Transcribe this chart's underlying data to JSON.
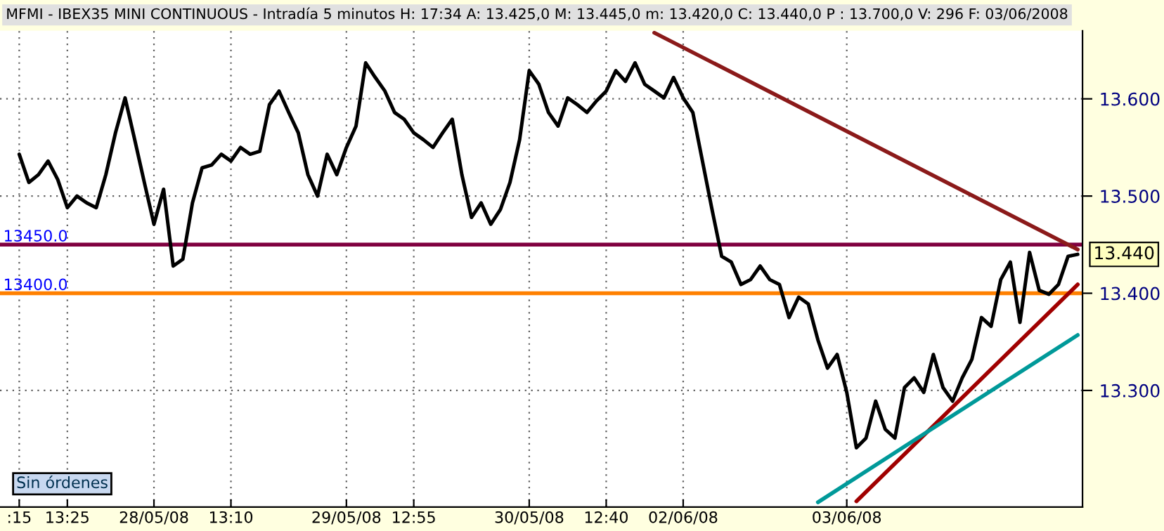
{
  "chart_data": {
    "type": "line",
    "title": "MFMI - IBEX35 MINI CONTINUOUS - Intradía 5 minutos H: 17:34 A: 13.425,0 M: 13.445,0 m: 13.420,0 C: 13.440,0 P : 13.700,0 V: 296 F: 03/06/2008",
    "categories": [
      ":15",
      null,
      null,
      null,
      null,
      "13:25",
      null,
      null,
      null,
      null,
      null,
      null,
      null,
      null,
      "28/05/08",
      null,
      null,
      null,
      null,
      null,
      null,
      null,
      "13:10",
      null,
      null,
      null,
      null,
      null,
      null,
      null,
      null,
      null,
      null,
      null,
      "29/05/08",
      null,
      null,
      null,
      null,
      null,
      null,
      "12:55",
      null,
      null,
      null,
      null,
      null,
      null,
      null,
      null,
      null,
      null,
      null,
      "30/05/08",
      null,
      null,
      null,
      null,
      null,
      null,
      null,
      "12:40",
      null,
      null,
      null,
      null,
      null,
      null,
      null,
      "02/06/08",
      null,
      null,
      null,
      null,
      null,
      null,
      null,
      null,
      null,
      null,
      null,
      null,
      null,
      null,
      null,
      null,
      "03/06/08",
      null,
      null,
      null,
      null,
      null,
      null,
      null,
      null,
      null,
      null,
      null,
      null,
      null,
      null,
      null,
      null,
      null,
      null,
      null,
      null,
      null,
      null,
      null,
      null
    ],
    "series": [
      {
        "color": "#000000",
        "values": [
          13.543,
          13.514,
          13.522,
          13.536,
          13.517,
          13.488,
          13.5,
          13.493,
          13.488,
          13.522,
          13.565,
          13.601,
          13.558,
          13.514,
          13.471,
          13.507,
          13.428,
          13.435,
          13.493,
          13.529,
          13.532,
          13.543,
          13.536,
          13.55,
          13.543,
          13.546,
          13.594,
          13.608,
          13.586,
          13.565,
          13.522,
          13.5,
          13.543,
          13.522,
          13.55,
          13.572,
          13.637,
          13.622,
          13.608,
          13.586,
          13.579,
          13.565,
          13.558,
          13.55,
          13.565,
          13.579,
          13.522,
          13.478,
          13.493,
          13.471,
          13.486,
          13.514,
          13.558,
          13.629,
          13.615,
          13.586,
          13.572,
          13.601,
          13.594,
          13.586,
          13.598,
          13.608,
          13.629,
          13.618,
          13.637,
          13.615,
          13.608,
          13.601,
          13.622,
          13.601,
          13.586,
          13.536,
          13.486,
          13.438,
          13.432,
          13.409,
          13.414,
          13.428,
          13.414,
          13.409,
          13.375,
          13.396,
          13.389,
          13.352,
          13.323,
          13.337,
          13.298,
          13.241,
          13.251,
          13.289,
          13.26,
          13.251,
          13.303,
          13.313,
          13.298,
          13.337,
          13.303,
          13.289,
          13.313,
          13.332,
          13.375,
          13.366,
          13.414,
          13.432,
          13.37,
          13.442,
          13.403,
          13.399,
          13.409,
          13.438,
          13.44
        ]
      },
      {
        "color": "#8b1a1a",
        "values": [
          null,
          null,
          null,
          null,
          null,
          null,
          null,
          null,
          null,
          null,
          null,
          null,
          null,
          null,
          null,
          null,
          null,
          null,
          null,
          null,
          null,
          null,
          null,
          null,
          null,
          null,
          null,
          null,
          null,
          null,
          null,
          null,
          null,
          null,
          null,
          null,
          null,
          null,
          null,
          null,
          null,
          null,
          null,
          null,
          null,
          null,
          null,
          null,
          null,
          null,
          null,
          null,
          null,
          null,
          null,
          null,
          null,
          null,
          null,
          null,
          null,
          null,
          null,
          null,
          null,
          null,
          13.668,
          null,
          null,
          null,
          null,
          null,
          null,
          null,
          null,
          null,
          null,
          null,
          null,
          null,
          null,
          null,
          null,
          null,
          null,
          null,
          null,
          null,
          null,
          null,
          null,
          null,
          null,
          null,
          null,
          null,
          null,
          null,
          null,
          null,
          null,
          null,
          null,
          null,
          null,
          null,
          null,
          null,
          null,
          null,
          13.445
        ]
      },
      {
        "color": "#a00000",
        "values": [
          null,
          null,
          null,
          null,
          null,
          null,
          null,
          null,
          null,
          null,
          null,
          null,
          null,
          null,
          null,
          null,
          null,
          null,
          null,
          null,
          null,
          null,
          null,
          null,
          null,
          null,
          null,
          null,
          null,
          null,
          null,
          null,
          null,
          null,
          null,
          null,
          null,
          null,
          null,
          null,
          null,
          null,
          null,
          null,
          null,
          null,
          null,
          null,
          null,
          null,
          null,
          null,
          null,
          null,
          null,
          null,
          null,
          null,
          null,
          null,
          null,
          null,
          null,
          null,
          null,
          null,
          null,
          null,
          null,
          null,
          null,
          null,
          null,
          null,
          null,
          null,
          null,
          null,
          null,
          null,
          null,
          null,
          null,
          null,
          null,
          null,
          null,
          13.186,
          null,
          null,
          null,
          null,
          null,
          null,
          null,
          null,
          null,
          null,
          null,
          null,
          null,
          null,
          null,
          null,
          null,
          null,
          null,
          null,
          null,
          null,
          13.409
        ]
      },
      {
        "color": "#009999",
        "values": [
          null,
          null,
          null,
          null,
          null,
          null,
          null,
          null,
          null,
          null,
          null,
          null,
          null,
          null,
          null,
          null,
          null,
          null,
          null,
          null,
          null,
          null,
          null,
          null,
          null,
          null,
          null,
          null,
          null,
          null,
          null,
          null,
          null,
          null,
          null,
          null,
          null,
          null,
          null,
          null,
          null,
          null,
          null,
          null,
          null,
          null,
          null,
          null,
          null,
          null,
          null,
          null,
          null,
          null,
          null,
          null,
          null,
          null,
          null,
          null,
          null,
          null,
          null,
          null,
          null,
          null,
          null,
          null,
          null,
          null,
          null,
          null,
          null,
          null,
          null,
          null,
          null,
          null,
          null,
          null,
          null,
          null,
          null,
          13.185,
          null,
          null,
          null,
          null,
          null,
          null,
          null,
          null,
          null,
          null,
          null,
          null,
          null,
          null,
          null,
          null,
          null,
          null,
          null,
          null,
          null,
          null,
          null,
          null,
          null,
          null,
          13.357
        ]
      }
    ],
    "ylim": [
      13.18,
      13.67
    ],
    "yticks": [
      {
        "value": 13.3,
        "label": "13.300"
      },
      {
        "value": 13.4,
        "label": "13.400"
      },
      {
        "value": 13.5,
        "label": "13.500"
      },
      {
        "value": 13.6,
        "label": "13.600"
      }
    ],
    "grid": true,
    "ref_lines": [
      {
        "axis": "y",
        "value": 13.45,
        "label": "13450.0",
        "color": "#800040"
      },
      {
        "axis": "y",
        "value": 13.4,
        "label": "13400.0",
        "color": "#ff8000"
      }
    ],
    "annotations": [
      "13.440",
      "Sin órdenes"
    ],
    "legend": false
  }
}
